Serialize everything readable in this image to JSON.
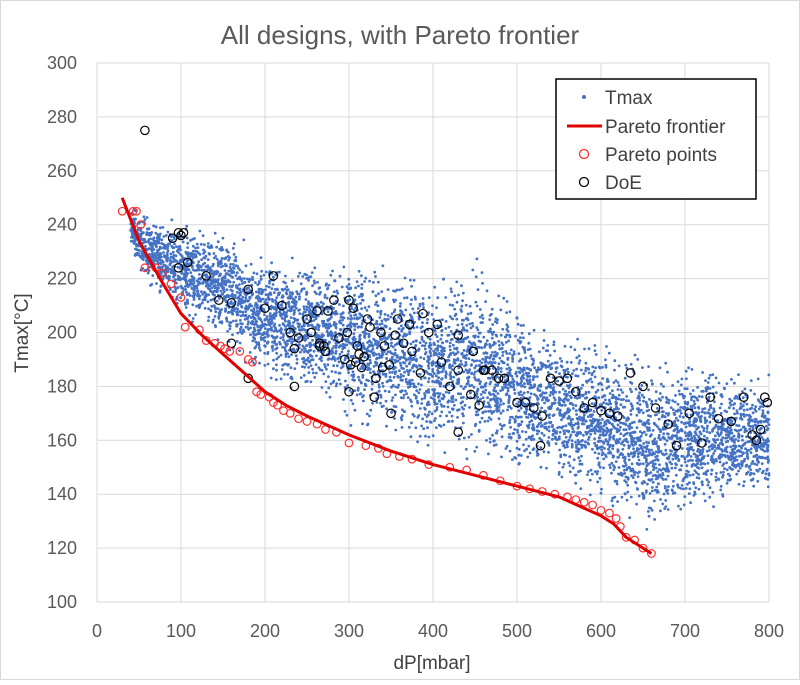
{
  "chart_data": {
    "type": "scatter",
    "title": "All designs, with Pareto frontier",
    "xlabel": "dP[mbar]",
    "ylabel": "Tmax[°C]",
    "xlim": [
      0,
      800
    ],
    "ylim": [
      100,
      300
    ],
    "x_ticks": [
      0,
      100,
      200,
      300,
      400,
      500,
      600,
      700,
      800
    ],
    "y_ticks": [
      100,
      120,
      140,
      160,
      180,
      200,
      220,
      240,
      260,
      280,
      300
    ],
    "grid": {
      "x": true,
      "y": true
    },
    "legend_position": "top-right",
    "colors": {
      "tmax": "#4472C4",
      "pareto_frontier": "#E00000",
      "pareto_points": "#FF3030",
      "doe": "#000000"
    },
    "series": [
      {
        "name": "Tmax",
        "kind": "dense-scatter",
        "approx_count": 6000,
        "density_envelope": [
          {
            "x": 40,
            "ymin": 228,
            "ymax": 250
          },
          {
            "x": 60,
            "ymin": 216,
            "ymax": 245
          },
          {
            "x": 100,
            "ymin": 203,
            "ymax": 244
          },
          {
            "x": 150,
            "ymin": 193,
            "ymax": 240
          },
          {
            "x": 200,
            "ymin": 180,
            "ymax": 232
          },
          {
            "x": 250,
            "ymin": 172,
            "ymax": 230
          },
          {
            "x": 300,
            "ymin": 163,
            "ymax": 232
          },
          {
            "x": 350,
            "ymin": 157,
            "ymax": 228
          },
          {
            "x": 400,
            "ymin": 152,
            "ymax": 223
          },
          {
            "x": 450,
            "ymin": 148,
            "ymax": 233
          },
          {
            "x": 500,
            "ymin": 143,
            "ymax": 213
          },
          {
            "x": 550,
            "ymin": 139,
            "ymax": 207
          },
          {
            "x": 600,
            "ymin": 133,
            "ymax": 200
          },
          {
            "x": 630,
            "ymin": 125,
            "ymax": 197
          },
          {
            "x": 660,
            "ymin": 120,
            "ymax": 193
          },
          {
            "x": 700,
            "ymin": 128,
            "ymax": 192
          },
          {
            "x": 750,
            "ymin": 132,
            "ymax": 190
          },
          {
            "x": 800,
            "ymin": 135,
            "ymax": 188
          }
        ]
      },
      {
        "name": "Pareto frontier",
        "kind": "line",
        "points": [
          [
            30,
            250
          ],
          [
            50,
            234
          ],
          [
            75,
            220
          ],
          [
            100,
            207
          ],
          [
            125,
            199
          ],
          [
            150,
            192
          ],
          [
            175,
            185
          ],
          [
            200,
            178
          ],
          [
            225,
            173
          ],
          [
            250,
            169
          ],
          [
            300,
            162
          ],
          [
            350,
            156
          ],
          [
            400,
            151
          ],
          [
            450,
            147
          ],
          [
            500,
            143
          ],
          [
            550,
            139
          ],
          [
            600,
            132
          ],
          [
            615,
            129
          ],
          [
            630,
            124
          ],
          [
            645,
            121
          ],
          [
            660,
            118
          ]
        ]
      },
      {
        "name": "Pareto points",
        "kind": "markers",
        "points": [
          [
            30,
            245
          ],
          [
            43,
            245
          ],
          [
            47,
            245
          ],
          [
            52,
            240
          ],
          [
            57,
            224
          ],
          [
            70,
            224
          ],
          [
            78,
            222
          ],
          [
            88,
            218
          ],
          [
            100,
            213
          ],
          [
            105,
            202
          ],
          [
            122,
            201
          ],
          [
            130,
            197
          ],
          [
            140,
            196
          ],
          [
            147,
            195
          ],
          [
            152,
            194
          ],
          [
            158,
            193
          ],
          [
            170,
            193
          ],
          [
            180,
            190
          ],
          [
            185,
            189
          ],
          [
            190,
            178
          ],
          [
            195,
            177
          ],
          [
            205,
            176
          ],
          [
            210,
            174
          ],
          [
            215,
            173
          ],
          [
            222,
            171
          ],
          [
            230,
            170
          ],
          [
            240,
            168
          ],
          [
            250,
            167
          ],
          [
            262,
            166
          ],
          [
            272,
            164
          ],
          [
            285,
            163
          ],
          [
            300,
            159
          ],
          [
            320,
            158
          ],
          [
            335,
            157
          ],
          [
            345,
            155
          ],
          [
            360,
            154
          ],
          [
            375,
            153
          ],
          [
            395,
            151
          ],
          [
            420,
            150
          ],
          [
            440,
            149
          ],
          [
            460,
            147
          ],
          [
            480,
            145
          ],
          [
            500,
            143
          ],
          [
            515,
            142
          ],
          [
            530,
            141
          ],
          [
            545,
            140
          ],
          [
            560,
            139
          ],
          [
            570,
            138
          ],
          [
            580,
            137
          ],
          [
            590,
            136
          ],
          [
            600,
            134
          ],
          [
            610,
            133
          ],
          [
            618,
            131
          ],
          [
            623,
            128
          ],
          [
            630,
            124
          ],
          [
            640,
            123
          ],
          [
            650,
            120
          ],
          [
            660,
            118
          ]
        ]
      },
      {
        "name": "DoE",
        "kind": "markers",
        "points": [
          [
            57,
            275
          ],
          [
            90,
            235
          ],
          [
            97,
            237
          ],
          [
            100,
            236
          ],
          [
            103,
            237
          ],
          [
            108,
            226
          ],
          [
            97,
            224
          ],
          [
            130,
            221
          ],
          [
            145,
            212
          ],
          [
            160,
            211
          ],
          [
            180,
            216
          ],
          [
            210,
            221
          ],
          [
            200,
            209
          ],
          [
            220,
            210
          ],
          [
            230,
            200
          ],
          [
            235,
            194
          ],
          [
            250,
            205
          ],
          [
            262,
            208
          ],
          [
            265,
            196
          ],
          [
            270,
            195
          ],
          [
            275,
            208
          ],
          [
            282,
            212
          ],
          [
            288,
            198
          ],
          [
            295,
            190
          ],
          [
            300,
            212
          ],
          [
            305,
            209
          ],
          [
            298,
            200
          ],
          [
            310,
            195
          ],
          [
            318,
            191
          ],
          [
            325,
            202
          ],
          [
            332,
            183
          ],
          [
            340,
            187
          ],
          [
            355,
            199
          ],
          [
            365,
            196
          ],
          [
            375,
            193
          ],
          [
            385,
            185
          ],
          [
            395,
            200
          ],
          [
            410,
            189
          ],
          [
            420,
            180
          ],
          [
            430,
            186
          ],
          [
            445,
            177
          ],
          [
            455,
            173
          ],
          [
            460,
            186
          ],
          [
            470,
            186
          ],
          [
            485,
            183
          ],
          [
            500,
            174
          ],
          [
            510,
            174
          ],
          [
            520,
            172
          ],
          [
            530,
            169
          ],
          [
            540,
            183
          ],
          [
            550,
            182
          ],
          [
            560,
            183
          ],
          [
            570,
            178
          ],
          [
            580,
            172
          ],
          [
            590,
            174
          ],
          [
            600,
            171
          ],
          [
            610,
            170
          ],
          [
            620,
            169
          ],
          [
            635,
            185
          ],
          [
            650,
            180
          ],
          [
            665,
            172
          ],
          [
            680,
            166
          ],
          [
            690,
            158
          ],
          [
            705,
            170
          ],
          [
            720,
            159
          ],
          [
            730,
            176
          ],
          [
            740,
            168
          ],
          [
            755,
            167
          ],
          [
            770,
            176
          ],
          [
            780,
            162
          ],
          [
            785,
            160
          ],
          [
            790,
            164
          ],
          [
            795,
            176
          ],
          [
            798,
            174
          ],
          [
            300,
            178
          ],
          [
            330,
            176
          ],
          [
            350,
            170
          ],
          [
            235,
            180
          ],
          [
            180,
            183
          ],
          [
            160,
            196
          ],
          [
            240,
            198
          ],
          [
            272,
            193
          ],
          [
            265,
            195
          ],
          [
            312,
            192
          ],
          [
            322,
            205
          ],
          [
            338,
            200
          ],
          [
            358,
            205
          ],
          [
            372,
            203
          ],
          [
            388,
            207
          ],
          [
            405,
            203
          ],
          [
            430,
            199
          ],
          [
            448,
            193
          ],
          [
            462,
            186
          ],
          [
            478,
            183
          ],
          [
            528,
            158
          ],
          [
            430,
            163
          ],
          [
            255,
            200
          ],
          [
            302,
            188
          ],
          [
            308,
            189
          ],
          [
            315,
            187
          ],
          [
            342,
            195
          ],
          [
            348,
            188
          ]
        ]
      }
    ]
  }
}
